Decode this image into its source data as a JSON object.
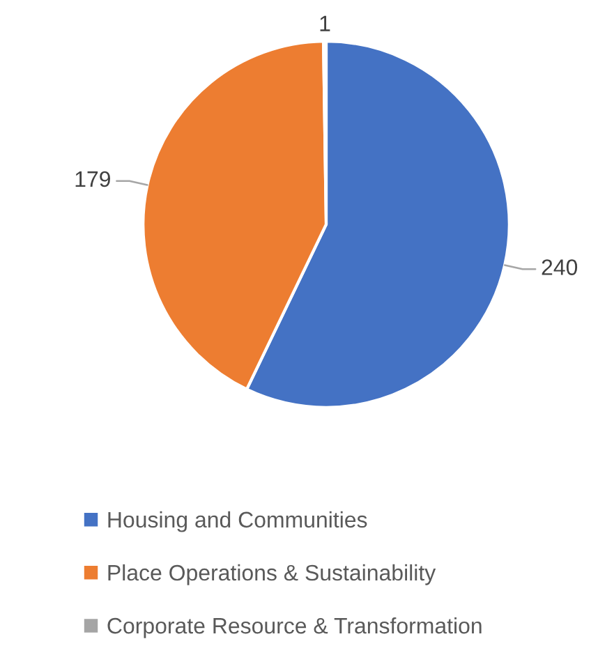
{
  "chart_data": {
    "type": "pie",
    "categories": [
      "Housing and Communities",
      "Place Operations & Sustainability",
      "Corporate Resource & Transformation"
    ],
    "values": [
      240,
      179,
      1
    ],
    "colors": [
      "#4472c4",
      "#ed7d31",
      "#a5a5a5"
    ],
    "data_labels": true,
    "legend": "bottom"
  }
}
